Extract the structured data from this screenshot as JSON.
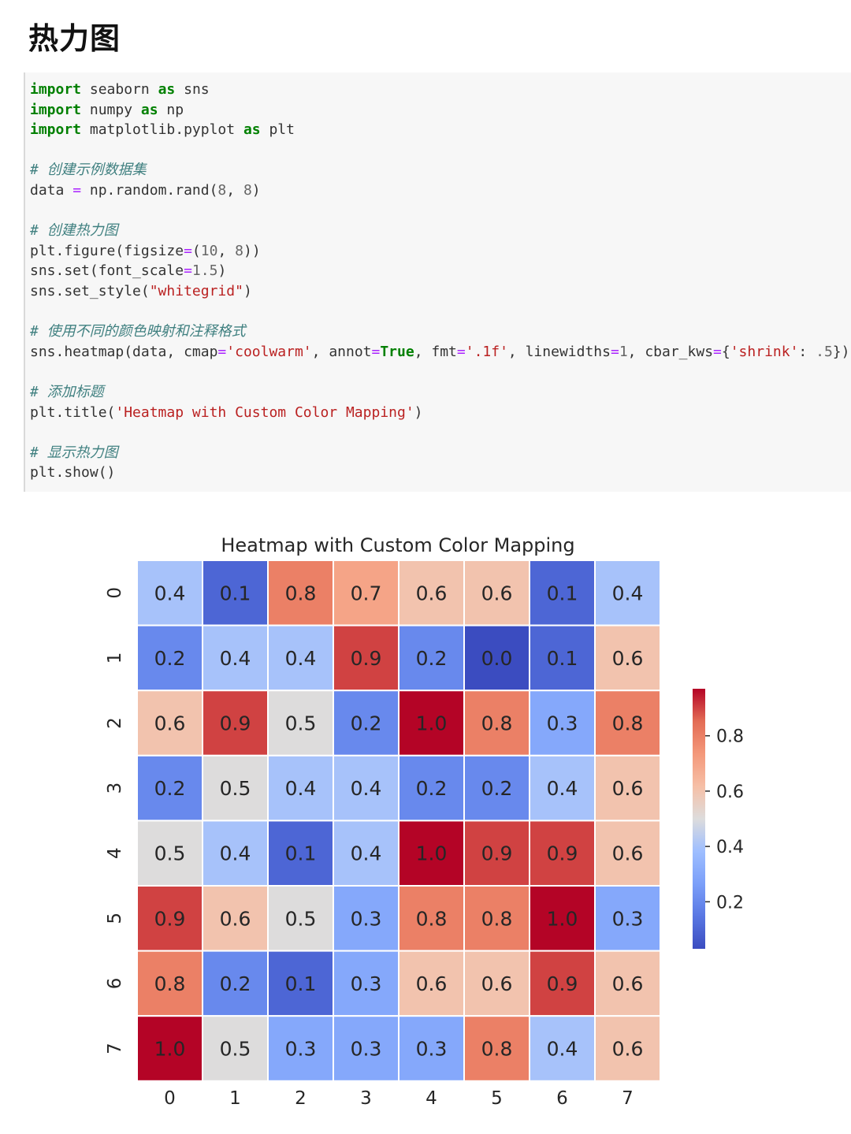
{
  "page": {
    "title": "热力图"
  },
  "code": {
    "lines": [
      [
        {
          "t": "import",
          "c": "kw"
        },
        {
          "t": " seaborn "
        },
        {
          "t": "as",
          "c": "kw"
        },
        {
          "t": " sns"
        }
      ],
      [
        {
          "t": "import",
          "c": "kw"
        },
        {
          "t": " numpy "
        },
        {
          "t": "as",
          "c": "kw"
        },
        {
          "t": " np"
        }
      ],
      [
        {
          "t": "import",
          "c": "kw"
        },
        {
          "t": " matplotlib.pyplot "
        },
        {
          "t": "as",
          "c": "kw"
        },
        {
          "t": " plt"
        }
      ],
      [],
      [
        {
          "t": "# 创建示例数据集",
          "c": "cm"
        }
      ],
      [
        {
          "t": "data "
        },
        {
          "t": "=",
          "c": "op"
        },
        {
          "t": " np.random.rand("
        },
        {
          "t": "8",
          "c": "nm"
        },
        {
          "t": ", "
        },
        {
          "t": "8",
          "c": "nm"
        },
        {
          "t": ")"
        }
      ],
      [],
      [
        {
          "t": "# 创建热力图",
          "c": "cm"
        }
      ],
      [
        {
          "t": "plt.figure(figsize"
        },
        {
          "t": "=",
          "c": "op"
        },
        {
          "t": "("
        },
        {
          "t": "10",
          "c": "nm"
        },
        {
          "t": ", "
        },
        {
          "t": "8",
          "c": "nm"
        },
        {
          "t": "))"
        }
      ],
      [
        {
          "t": "sns.set(font_scale"
        },
        {
          "t": "=",
          "c": "op"
        },
        {
          "t": "1.5",
          "c": "nm"
        },
        {
          "t": ")"
        }
      ],
      [
        {
          "t": "sns.set_style("
        },
        {
          "t": "\"whitegrid\"",
          "c": "st"
        },
        {
          "t": ")"
        }
      ],
      [],
      [
        {
          "t": "# 使用不同的颜色映射和注释格式",
          "c": "cm"
        }
      ],
      [
        {
          "t": "sns.heatmap(data, cmap"
        },
        {
          "t": "=",
          "c": "op"
        },
        {
          "t": "'coolwarm'",
          "c": "st"
        },
        {
          "t": ", annot"
        },
        {
          "t": "=",
          "c": "op"
        },
        {
          "t": "True",
          "c": "kw"
        },
        {
          "t": ", fmt"
        },
        {
          "t": "=",
          "c": "op"
        },
        {
          "t": "'.1f'",
          "c": "st"
        },
        {
          "t": ", linewidths"
        },
        {
          "t": "=",
          "c": "op"
        },
        {
          "t": "1",
          "c": "nm"
        },
        {
          "t": ", cbar_kws"
        },
        {
          "t": "=",
          "c": "op"
        },
        {
          "t": "{"
        },
        {
          "t": "'shrink'",
          "c": "st"
        },
        {
          "t": ": "
        },
        {
          "t": ".5",
          "c": "nm"
        },
        {
          "t": "})"
        }
      ],
      [],
      [
        {
          "t": "# 添加标题",
          "c": "cm"
        }
      ],
      [
        {
          "t": "plt.title("
        },
        {
          "t": "'Heatmap with Custom Color Mapping'",
          "c": "st"
        },
        {
          "t": ")"
        }
      ],
      [],
      [
        {
          "t": "# 显示热力图",
          "c": "cm"
        }
      ],
      [
        {
          "t": "plt.show()"
        }
      ]
    ]
  },
  "chart_data": {
    "type": "heatmap",
    "title": "Heatmap with Custom Color Mapping",
    "colormap": "coolwarm",
    "x_tick_labels": [
      "0",
      "1",
      "2",
      "3",
      "4",
      "5",
      "6",
      "7"
    ],
    "y_tick_labels": [
      "0",
      "1",
      "2",
      "3",
      "4",
      "5",
      "6",
      "7"
    ],
    "values": [
      [
        0.4,
        0.1,
        0.8,
        0.7,
        0.6,
        0.6,
        0.1,
        0.4
      ],
      [
        0.2,
        0.4,
        0.4,
        0.9,
        0.2,
        0.0,
        0.1,
        0.6
      ],
      [
        0.6,
        0.9,
        0.5,
        0.2,
        1.0,
        0.8,
        0.3,
        0.8
      ],
      [
        0.2,
        0.5,
        0.4,
        0.4,
        0.2,
        0.2,
        0.4,
        0.6
      ],
      [
        0.5,
        0.4,
        0.1,
        0.4,
        1.0,
        0.9,
        0.9,
        0.6
      ],
      [
        0.9,
        0.6,
        0.5,
        0.3,
        0.8,
        0.8,
        1.0,
        0.3
      ],
      [
        0.8,
        0.2,
        0.1,
        0.3,
        0.6,
        0.6,
        0.9,
        0.6
      ],
      [
        1.0,
        0.5,
        0.3,
        0.3,
        0.3,
        0.8,
        0.4,
        0.6
      ]
    ],
    "colorbar": {
      "range": [
        0.03,
        0.97
      ],
      "ticks": [
        0.2,
        0.4,
        0.6,
        0.8
      ],
      "tick_labels": [
        "0.2",
        "0.4",
        "0.6",
        "0.8"
      ]
    }
  }
}
